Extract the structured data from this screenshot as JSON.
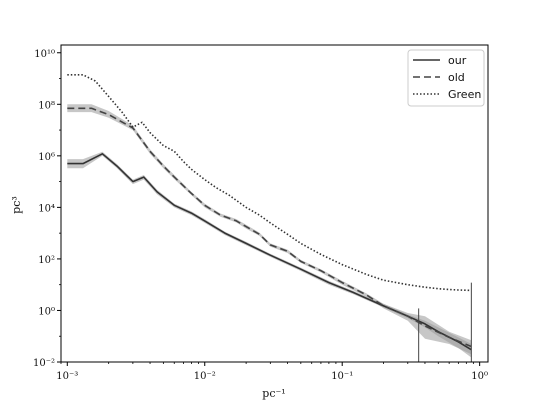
{
  "chart_data": {
    "type": "line",
    "title": "",
    "xlabel": "pc⁻¹",
    "ylabel": "pc³",
    "xscale": "log",
    "yscale": "log",
    "xlim": [
      0.0009,
      1.15
    ],
    "ylim": [
      0.01,
      20000000000
    ],
    "legend_position": "top-right",
    "grid": false,
    "x_ticks": [
      {
        "value": 0.001,
        "label": "10⁻³"
      },
      {
        "value": 0.01,
        "label": "10⁻²"
      },
      {
        "value": 0.1,
        "label": "10⁻¹"
      },
      {
        "value": 1,
        "label": "10⁰"
      }
    ],
    "y_ticks": [
      {
        "value": 0.01,
        "label": "10⁻²"
      },
      {
        "value": 1,
        "label": "10⁰"
      },
      {
        "value": 100,
        "label": "10²"
      },
      {
        "value": 10000,
        "label": "10⁴"
      },
      {
        "value": 1000000,
        "label": "10⁶"
      },
      {
        "value": 100000000,
        "label": "10⁸"
      },
      {
        "value": 10000000000,
        "label": "10¹⁰"
      }
    ],
    "series": [
      {
        "name": "our",
        "style": "solid",
        "color": "#333333",
        "x": [
          0.001,
          0.0013,
          0.0018,
          0.0023,
          0.003,
          0.0036,
          0.0045,
          0.006,
          0.008,
          0.01,
          0.014,
          0.02,
          0.03,
          0.05,
          0.08,
          0.12,
          0.2,
          0.3,
          0.4,
          0.5,
          0.7,
          0.87
        ],
        "y": [
          500000,
          500000,
          1200000,
          400000,
          100000,
          150000,
          40000,
          12000,
          6000,
          3000,
          1000,
          400,
          140,
          40,
          12,
          5,
          1.5,
          0.6,
          0.3,
          0.15,
          0.06,
          0.03
        ],
        "band_lower": [
          330000,
          330000,
          1000000,
          330000,
          80000,
          120000,
          32000,
          10000,
          5000,
          2500,
          850,
          340,
          120,
          34,
          10,
          4.3,
          1.3,
          0.5,
          0.22,
          0.1,
          0.035,
          0.015
        ],
        "band_upper": [
          750000,
          750000,
          1450000,
          480000,
          120000,
          180000,
          48000,
          14000,
          7000,
          3500,
          1150,
          460,
          160,
          46,
          14,
          5.8,
          1.8,
          0.7,
          0.4,
          0.22,
          0.09,
          0.05
        ]
      },
      {
        "name": "old",
        "style": "dashed",
        "color": "#444444",
        "x": [
          0.001,
          0.0015,
          0.002,
          0.003,
          0.004,
          0.005,
          0.006,
          0.008,
          0.01,
          0.013,
          0.017,
          0.02,
          0.025,
          0.03,
          0.04,
          0.05,
          0.07,
          0.1,
          0.15,
          0.2,
          0.3,
          0.4,
          0.6,
          0.87
        ],
        "y": [
          70000000,
          70000000,
          40000000,
          12000000,
          1500000,
          400000,
          150000,
          35000,
          12000,
          5000,
          3000,
          1800,
          900,
          350,
          200,
          80,
          35,
          12,
          4,
          1.5,
          0.6,
          0.25,
          0.09,
          0.04
        ],
        "band_lower": [
          50000000,
          50000000,
          30000000,
          10000000,
          1200000,
          330000,
          125000,
          30000,
          10000,
          4300,
          2600,
          1500,
          780,
          300,
          170,
          70,
          30,
          10,
          3.4,
          1.2,
          0.4,
          0.08,
          0.05,
          0.02
        ],
        "band_upper": [
          100000000,
          100000000,
          55000000,
          15000000,
          1800000,
          480000,
          180000,
          40000,
          14000,
          5800,
          3500,
          2100,
          1050,
          400,
          230,
          92,
          40,
          14,
          4.6,
          1.8,
          0.8,
          0.6,
          0.15,
          0.07
        ]
      },
      {
        "name": "Green",
        "style": "dotted",
        "color": "#333333",
        "x": [
          0.001,
          0.0013,
          0.0016,
          0.002,
          0.0025,
          0.003,
          0.0035,
          0.004,
          0.005,
          0.006,
          0.007,
          0.008,
          0.01,
          0.012,
          0.015,
          0.02,
          0.025,
          0.03,
          0.04,
          0.05,
          0.07,
          0.1,
          0.15,
          0.2,
          0.3,
          0.4,
          0.5,
          0.6,
          0.7,
          0.87
        ],
        "y": [
          1400000000,
          1400000000,
          800000000,
          200000000,
          50000000,
          13000000,
          20000000,
          8000000,
          2500000,
          1500000,
          600000,
          300000,
          120000,
          60000,
          30000,
          10000,
          5000,
          2500,
          900,
          400,
          150,
          60,
          25,
          15,
          10,
          8,
          7,
          6.5,
          6.2,
          6
        ]
      }
    ],
    "vertical_markers": [
      {
        "x": 0.36,
        "y_from": 0.01,
        "y_to": 1.2
      },
      {
        "x": 0.87,
        "y_from": 0.01,
        "y_to": 12
      }
    ]
  }
}
